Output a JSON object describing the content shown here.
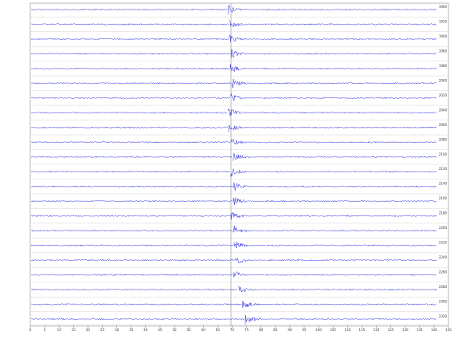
{
  "chart_data": {
    "type": "seismogram",
    "xlim": [
      0,
      145
    ],
    "xticks": [
      0,
      5,
      10,
      15,
      20,
      25,
      30,
      35,
      40,
      45,
      50,
      55,
      60,
      65,
      70,
      75,
      80,
      85,
      90,
      95,
      100,
      105,
      110,
      115,
      120,
      125,
      130,
      135,
      140,
      145
    ],
    "color": "#1f1fe0",
    "traces": [
      {
        "name": "1900",
        "onset": 68.5
      },
      {
        "name": "1920",
        "onset": 69
      },
      {
        "name": "1940",
        "onset": 68.8
      },
      {
        "name": "1960",
        "onset": 69.5
      },
      {
        "name": "1980",
        "onset": 69.2
      },
      {
        "name": "2000",
        "onset": 69.8
      },
      {
        "name": "2020",
        "onset": 69.3
      },
      {
        "name": "2040",
        "onset": 68.5
      },
      {
        "name": "2060",
        "onset": 68.7
      },
      {
        "name": "2080",
        "onset": 69.5
      },
      {
        "name": "2100",
        "onset": 70
      },
      {
        "name": "2120",
        "onset": 69.4
      },
      {
        "name": "2140",
        "onset": 70.3
      },
      {
        "name": "2160",
        "onset": 70.1
      },
      {
        "name": "2180",
        "onset": 69.4
      },
      {
        "name": "2200",
        "onset": 70.4
      },
      {
        "name": "2220",
        "onset": 70.6
      },
      {
        "name": "2240",
        "onset": 71
      },
      {
        "name": "2260",
        "onset": 70.3
      },
      {
        "name": "2280",
        "onset": 72
      },
      {
        "name": "2300",
        "onset": 73.5
      },
      {
        "name": "2320",
        "onset": 74.5
      }
    ]
  }
}
